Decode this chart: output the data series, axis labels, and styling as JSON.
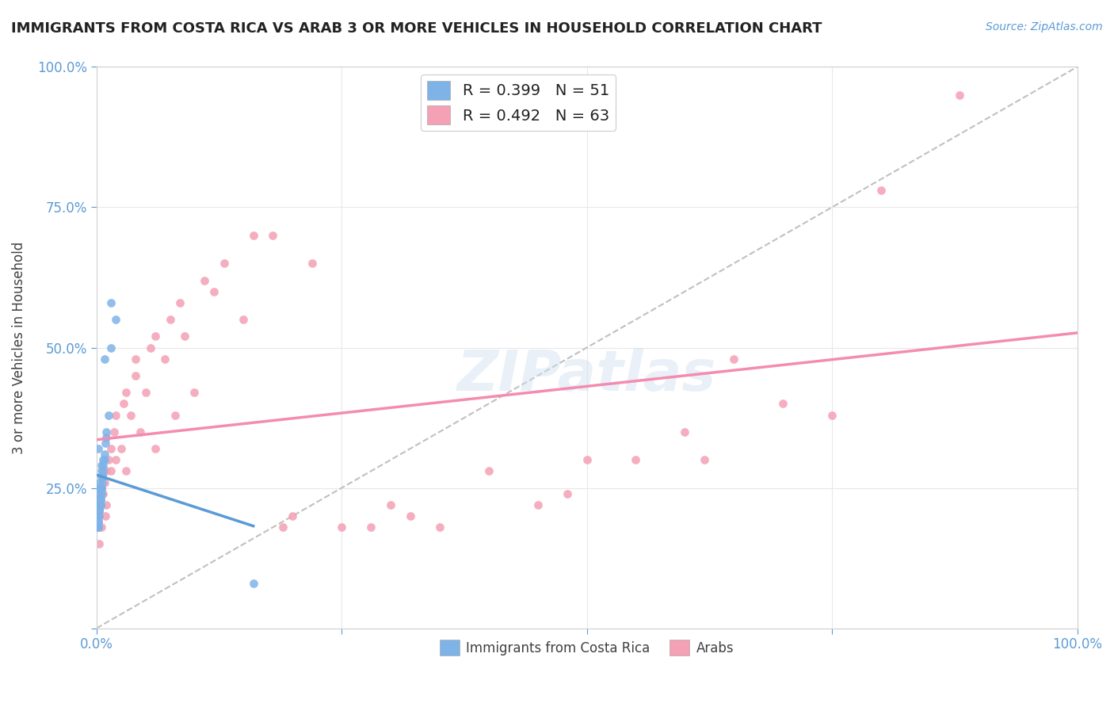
{
  "title": "IMMIGRANTS FROM COSTA RICA VS ARAB 3 OR MORE VEHICLES IN HOUSEHOLD CORRELATION CHART",
  "source": "Source: ZipAtlas.com",
  "ylabel": "3 or more Vehicles in Household",
  "legend_label1": "Immigrants from Costa Rica",
  "legend_label2": "Arabs",
  "R1": 0.399,
  "N1": 51,
  "R2": 0.492,
  "N2": 63,
  "color1": "#7eb3e8",
  "color2": "#f4a0b5",
  "trendline1_color": "#5b9bd5",
  "trendline2_color": "#f48cb0",
  "diagonal_color": "#c0c0c0",
  "background_color": "#ffffff",
  "scatter1_x": [
    0.2,
    0.8,
    1.5,
    2.0,
    0.5,
    0.3,
    0.7,
    1.0,
    0.1,
    0.4,
    0.6,
    0.9,
    1.2,
    0.2,
    0.3,
    0.5,
    0.8,
    1.5,
    0.2,
    0.4,
    0.7,
    0.3,
    0.6,
    1.0,
    0.1,
    0.2,
    0.5,
    0.3,
    0.4,
    0.6,
    0.8,
    0.2,
    0.3,
    0.5,
    0.7,
    0.4,
    0.3,
    0.2,
    0.5,
    0.6,
    0.3,
    0.4,
    0.2,
    0.3,
    0.5,
    0.4,
    0.2,
    0.3,
    0.6,
    0.4,
    16.0
  ],
  "scatter1_y": [
    32,
    48,
    58,
    55,
    28,
    25,
    30,
    35,
    20,
    22,
    27,
    33,
    38,
    24,
    26,
    29,
    31,
    50,
    23,
    25,
    28,
    22,
    26,
    34,
    18,
    20,
    27,
    21,
    23,
    27,
    30,
    19,
    21,
    25,
    29,
    24,
    21,
    18,
    25,
    27,
    21,
    23,
    19,
    21,
    24,
    22,
    18,
    20,
    27,
    22,
    8
  ],
  "scatter2_x": [
    0.5,
    1.0,
    2.0,
    3.0,
    4.5,
    6.0,
    8.0,
    10.0,
    15.0,
    20.0,
    25.0,
    30.0,
    40.0,
    50.0,
    60.0,
    70.0,
    80.0,
    0.3,
    0.7,
    1.5,
    2.5,
    3.5,
    5.0,
    7.0,
    9.0,
    12.0,
    18.0,
    22.0,
    35.0,
    45.0,
    55.0,
    65.0,
    0.4,
    0.8,
    1.2,
    1.8,
    2.8,
    4.0,
    5.5,
    7.5,
    11.0,
    16.0,
    28.0,
    0.2,
    0.6,
    1.0,
    1.5,
    2.0,
    3.0,
    4.0,
    6.0,
    8.5,
    13.0,
    19.0,
    32.0,
    48.0,
    62.0,
    75.0,
    88.0,
    0.9,
    0.3,
    0.5,
    0.4
  ],
  "scatter2_y": [
    25,
    22,
    30,
    28,
    35,
    32,
    38,
    42,
    55,
    20,
    18,
    22,
    28,
    30,
    35,
    40,
    78,
    20,
    24,
    28,
    32,
    38,
    42,
    48,
    52,
    60,
    70,
    65,
    18,
    22,
    30,
    48,
    22,
    26,
    30,
    35,
    40,
    45,
    50,
    55,
    62,
    70,
    18,
    20,
    24,
    28,
    32,
    38,
    42,
    48,
    52,
    58,
    65,
    18,
    20,
    24,
    30,
    38,
    95,
    20,
    15,
    18,
    22
  ]
}
